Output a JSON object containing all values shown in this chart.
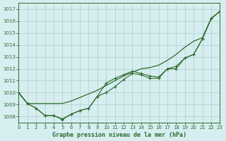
{
  "background_color": "#d6eef0",
  "grid_color": "#c8dfe0",
  "line_color": "#2d6a2d",
  "title": "Graphe pression niveau de la mer (hPa)",
  "xlim": [
    0,
    23
  ],
  "ylim": [
    1007.5,
    1017.5
  ],
  "yticks": [
    1008,
    1009,
    1010,
    1011,
    1012,
    1013,
    1014,
    1015,
    1016,
    1017
  ],
  "xticks": [
    0,
    1,
    2,
    3,
    4,
    5,
    6,
    7,
    8,
    9,
    10,
    11,
    12,
    13,
    14,
    15,
    16,
    17,
    18,
    19,
    20,
    21,
    22,
    23
  ],
  "series_smooth": [
    1010.0,
    1009.1,
    1009.1,
    1009.1,
    1009.1,
    1009.1,
    1009.3,
    1009.6,
    1009.9,
    1010.2,
    1010.6,
    1011.0,
    1011.4,
    1011.7,
    1012.0,
    1012.1,
    1012.3,
    1012.7,
    1013.2,
    1013.8,
    1014.3,
    1014.6,
    1016.2,
    1016.8
  ],
  "series_markers1": [
    1010.0,
    1009.1,
    1008.7,
    1008.1,
    1008.1,
    1007.8,
    1008.2,
    1008.5,
    1008.7,
    1009.7,
    1010.8,
    1011.2,
    1011.5,
    1011.8,
    1011.6,
    1011.4,
    1011.3,
    1012.0,
    1012.2,
    1012.9,
    1013.2,
    1014.5,
    1016.2,
    1016.8
  ],
  "series_markers2": [
    1010.0,
    1009.1,
    1008.7,
    1008.1,
    1008.1,
    1007.75,
    1008.2,
    1008.5,
    1008.7,
    1009.7,
    1010.0,
    1010.5,
    1011.1,
    1011.6,
    1011.5,
    1011.2,
    1011.2,
    1012.0,
    1012.0,
    1012.9,
    1013.2,
    1014.5,
    1016.2,
    1016.8
  ]
}
